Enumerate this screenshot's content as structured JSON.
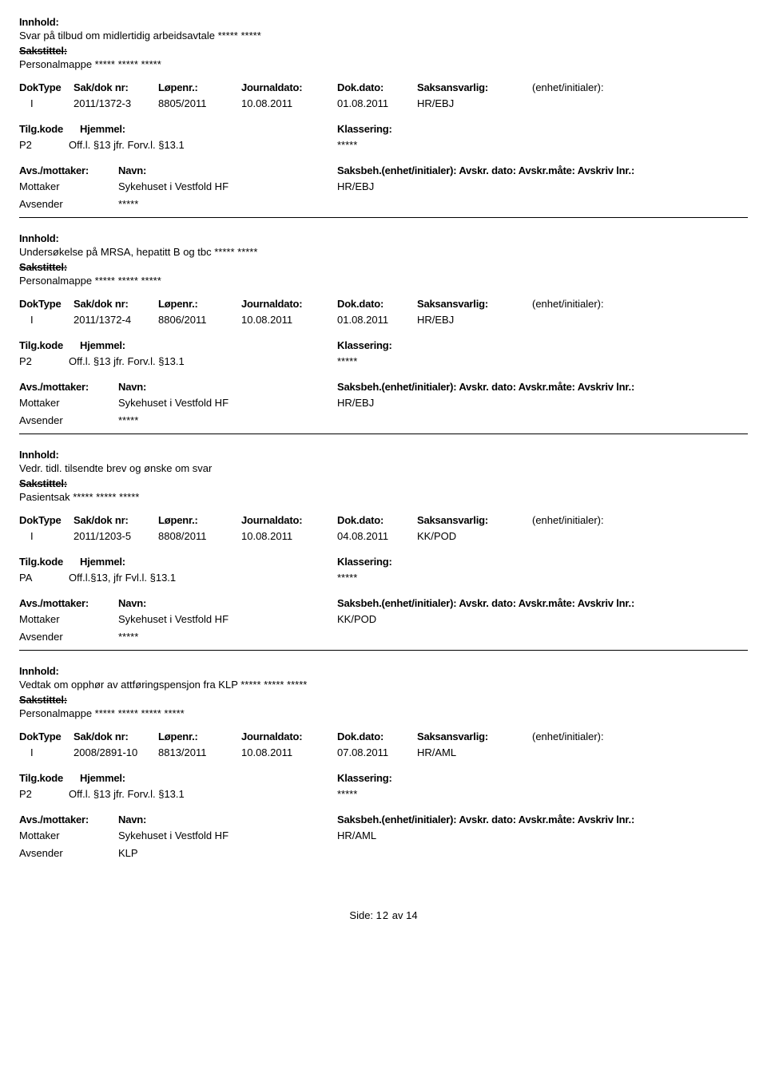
{
  "labels": {
    "innhold": "Innhold:",
    "sakstittel": "Sakstittel:",
    "doktype": "DokType",
    "sakdok": "Sak/dok nr:",
    "lopenr": "Løpenr.:",
    "journaldato": "Journaldato:",
    "dokdato": "Dok.dato:",
    "saksansvarlig": "Saksansvarlig:",
    "enhet_initialer": "(enhet/initialer):",
    "tilgkode": "Tilg.kode",
    "hjemmel": "Hjemmel:",
    "klassering": "Klassering:",
    "avs_mottaker": "Avs./mottaker:",
    "navn": "Navn:",
    "saksbeh_line": "Saksbeh.(enhet/initialer): Avskr. dato: Avskr.måte: Avskriv lnr.:",
    "mottaker": "Mottaker",
    "avsender": "Avsender",
    "side": "Side:",
    "av": "av"
  },
  "pagination": {
    "page": "12",
    "total": "14"
  },
  "records": [
    {
      "innhold": "Svar på tilbud om midlertidig arbeidsavtale ***** *****",
      "sakstittel": "Personalmappe ***** ***** *****",
      "doktype": "I",
      "sakdok": "2011/1372-3",
      "lopenr": "8805/2011",
      "journaldato": "10.08.2011",
      "dokdato": "01.08.2011",
      "saksansvarlig": "HR/EBJ",
      "tilgkode": "P2",
      "hjemmel": "Off.l. §13 jfr. Forv.l. §13.1",
      "klassering": "*****",
      "mottaker_name": "Sykehuset i Vestfold HF",
      "saksbeh": "HR/EBJ",
      "avsender_name": "*****"
    },
    {
      "innhold": "Undersøkelse på MRSA, hepatitt B og tbc ***** *****",
      "sakstittel": "Personalmappe ***** ***** *****",
      "doktype": "I",
      "sakdok": "2011/1372-4",
      "lopenr": "8806/2011",
      "journaldato": "10.08.2011",
      "dokdato": "01.08.2011",
      "saksansvarlig": "HR/EBJ",
      "tilgkode": "P2",
      "hjemmel": "Off.l. §13 jfr. Forv.l. §13.1",
      "klassering": "*****",
      "mottaker_name": "Sykehuset i Vestfold HF",
      "saksbeh": "HR/EBJ",
      "avsender_name": "*****"
    },
    {
      "innhold": "Vedr. tidl. tilsendte brev og ønske om svar",
      "sakstittel": "Pasientsak ***** ***** *****",
      "doktype": "I",
      "sakdok": "2011/1203-5",
      "lopenr": "8808/2011",
      "journaldato": "10.08.2011",
      "dokdato": "04.08.2011",
      "saksansvarlig": "KK/POD",
      "tilgkode": "PA",
      "hjemmel": "Off.l.§13, jfr Fvl.l. §13.1",
      "klassering": "*****",
      "mottaker_name": "Sykehuset i Vestfold HF",
      "saksbeh": "KK/POD",
      "avsender_name": "*****"
    },
    {
      "innhold": "Vedtak om opphør av attføringspensjon fra KLP ***** ***** *****",
      "sakstittel": "Personalmappe ***** ***** ***** *****",
      "doktype": "I",
      "sakdok": "2008/2891-10",
      "lopenr": "8813/2011",
      "journaldato": "10.08.2011",
      "dokdato": "07.08.2011",
      "saksansvarlig": "HR/AML",
      "tilgkode": "P2",
      "hjemmel": "Off.l. §13 jfr. Forv.l. §13.1",
      "klassering": "*****",
      "mottaker_name": "Sykehuset i Vestfold HF",
      "saksbeh": "HR/AML",
      "avsender_name": "KLP"
    }
  ]
}
